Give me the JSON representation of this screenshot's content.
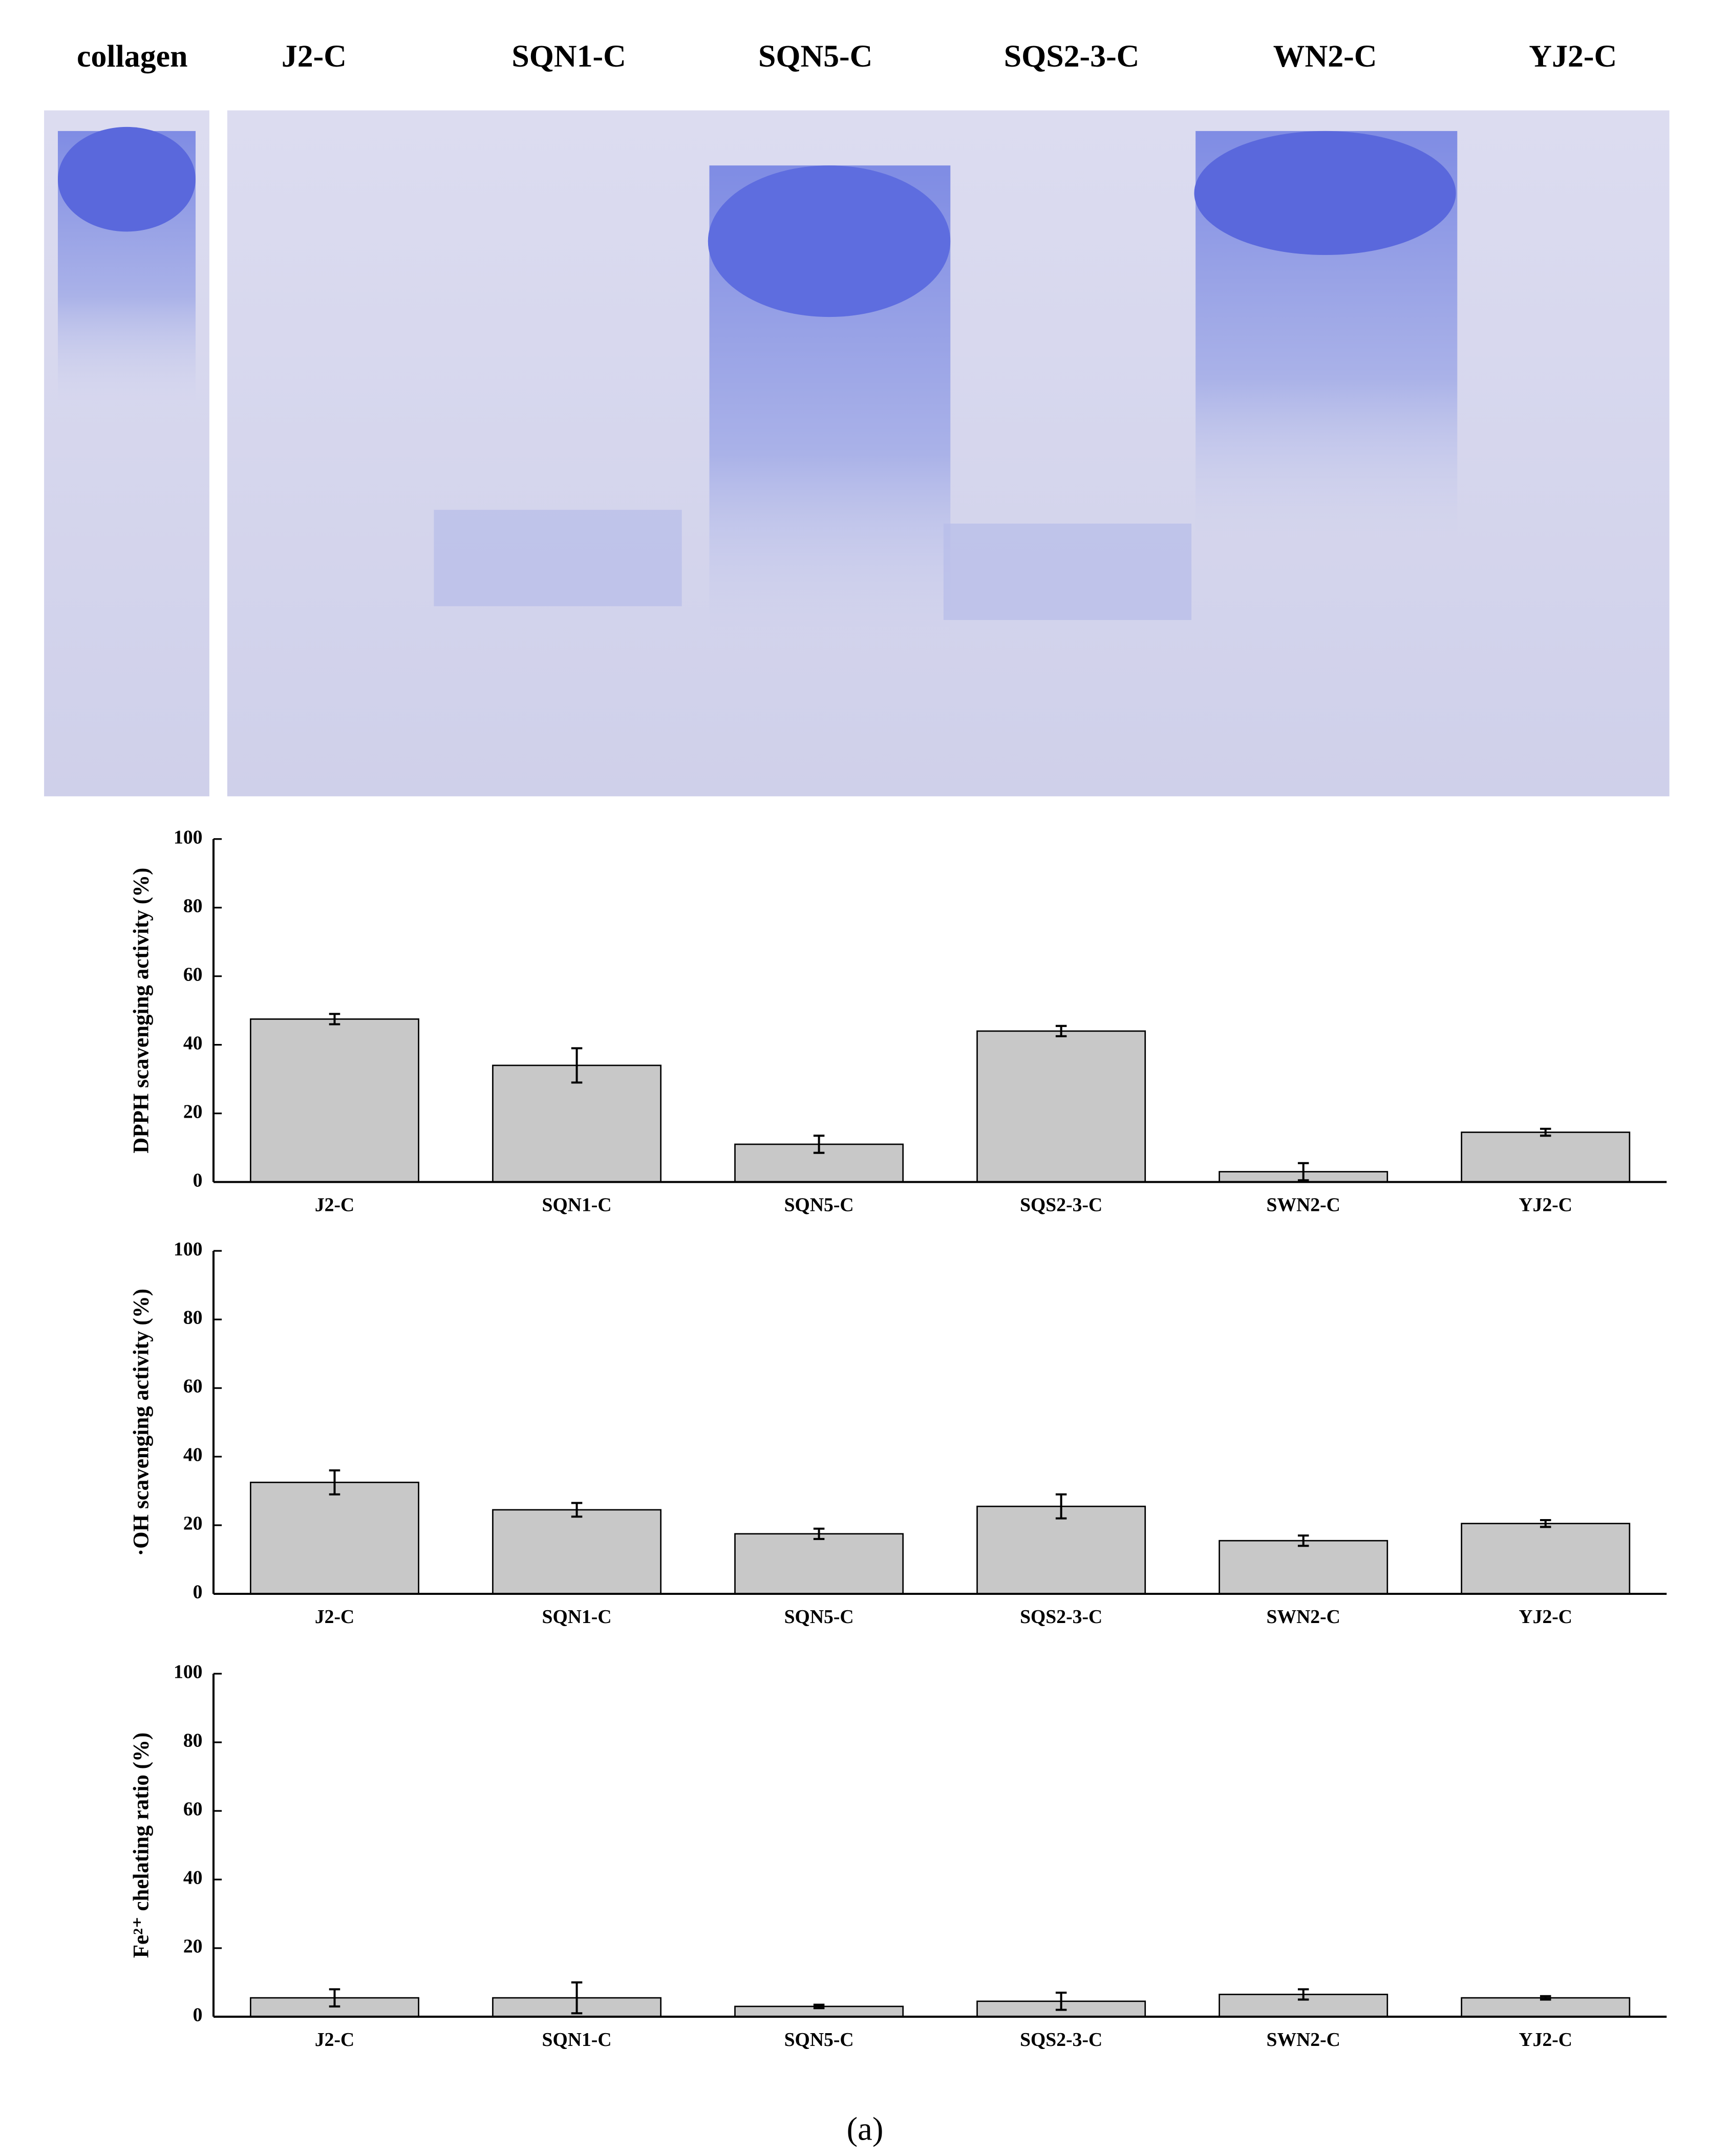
{
  "gel": {
    "lanes": [
      "collagen",
      "J2-C",
      "SQN1-C",
      "SQN5-C",
      "SQS2-3-C",
      "WN2-C",
      "YJ2-C"
    ]
  },
  "chart_data": [
    {
      "type": "bar",
      "y_label": "DPPH scavenging activity (%)",
      "categories": [
        "J2-C",
        "SQN1-C",
        "SQN5-C",
        "SQS2-3-C",
        "SWN2-C",
        "YJ2-C"
      ],
      "values": [
        47.5,
        34,
        11,
        44,
        3,
        14.5
      ],
      "errors": [
        1.5,
        5,
        2.5,
        1.5,
        2.5,
        1
      ],
      "color": "#c8c8c8",
      "ylim": [
        0,
        100
      ],
      "yticks": [
        0,
        20,
        40,
        60,
        80,
        100
      ]
    },
    {
      "type": "bar",
      "y_label": "·OH scavenging activity (%)",
      "categories": [
        "J2-C",
        "SQN1-C",
        "SQN5-C",
        "SQS2-3-C",
        "SWN2-C",
        "YJ2-C"
      ],
      "values": [
        32.5,
        24.5,
        17.5,
        25.5,
        15.5,
        20.5
      ],
      "errors": [
        3.5,
        2,
        1.5,
        3.5,
        1.5,
        1
      ],
      "color": "#c8c8c8",
      "ylim": [
        0,
        100
      ],
      "yticks": [
        0,
        20,
        40,
        60,
        80,
        100
      ]
    },
    {
      "type": "bar",
      "y_label": "Fe²⁺ chelating ratio (%)",
      "categories": [
        "J2-C",
        "SQN1-C",
        "SQN5-C",
        "SQS2-3-C",
        "SWN2-C",
        "YJ2-C"
      ],
      "values": [
        5.5,
        5.5,
        3,
        4.5,
        6.5,
        5.5
      ],
      "errors": [
        2.5,
        4.5,
        0.5,
        2.5,
        1.5,
        0.5
      ],
      "color": "#c8c8c8",
      "ylim": [
        0,
        100
      ],
      "yticks": [
        0,
        20,
        40,
        60,
        80,
        100
      ]
    }
  ],
  "caption": "(a)"
}
